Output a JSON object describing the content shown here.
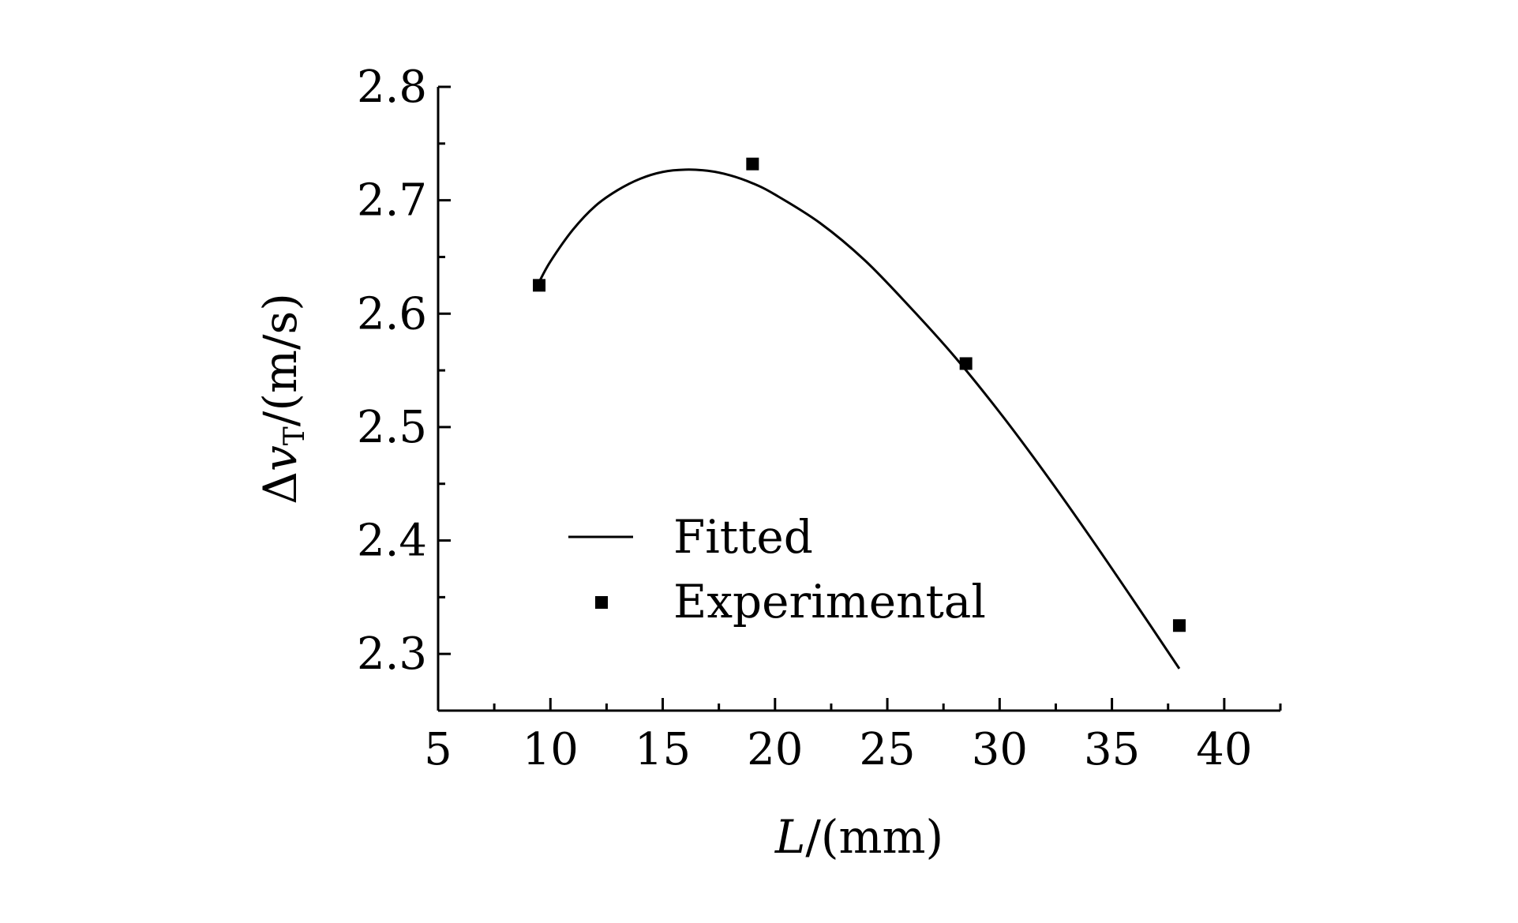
{
  "chart_data": {
    "type": "scatter",
    "x_axis": {
      "label_var": "L",
      "label_unit": "/(mm)",
      "range": [
        5,
        42.5
      ],
      "ticks": [
        5,
        10,
        15,
        20,
        25,
        30,
        35,
        40
      ],
      "minor_ticks": [
        7.5,
        12.5,
        17.5,
        22.5,
        27.5,
        32.5,
        37.5,
        42.5
      ]
    },
    "y_axis": {
      "label_delta": "Δ",
      "label_var": "v",
      "label_sub": "T",
      "label_unit": "/(m/s)",
      "range": [
        2.25,
        2.8
      ],
      "ticks": [
        2.3,
        2.4,
        2.5,
        2.6,
        2.7,
        2.8
      ],
      "minor_ticks": [
        2.25,
        2.35,
        2.45,
        2.55,
        2.65,
        2.75
      ]
    },
    "series": [
      {
        "name": "Fitted",
        "type": "line",
        "x": [
          9.5,
          10,
          11,
          12,
          13,
          14,
          15,
          16,
          17,
          18,
          19,
          20,
          22,
          24,
          26,
          28,
          30,
          32,
          34,
          36,
          38
        ],
        "y": [
          2.628,
          2.646,
          2.674,
          2.695,
          2.709,
          2.719,
          2.725,
          2.727,
          2.726,
          2.722,
          2.715,
          2.705,
          2.68,
          2.647,
          2.606,
          2.562,
          2.513,
          2.46,
          2.404,
          2.346,
          2.287
        ]
      },
      {
        "name": "Experimental",
        "type": "scatter",
        "marker": "square",
        "x": [
          9.5,
          19,
          28.5,
          38
        ],
        "y": [
          2.625,
          2.732,
          2.556,
          2.325
        ]
      }
    ],
    "legend": {
      "placement": "lower-left",
      "items": [
        "Fitted",
        "Experimental"
      ]
    },
    "grid": false,
    "colors": {
      "line": "#000000",
      "marker": "#000000"
    }
  }
}
